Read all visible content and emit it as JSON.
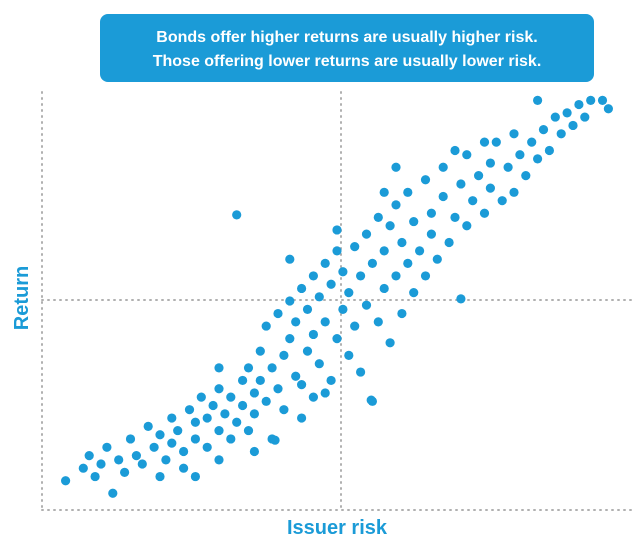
{
  "chart_data": {
    "type": "scatter",
    "annotation": [
      "Bonds offer higher returns are usually higher risk.",
      "Those offering lower returns are usually lower risk."
    ],
    "xlabel": "Issuer risk",
    "ylabel": "Return",
    "color": "#1b9bd7",
    "xlim": [
      0,
      100
    ],
    "ylim": [
      0,
      100
    ],
    "x": [
      4,
      7,
      9,
      8,
      10,
      11,
      12,
      13,
      14,
      15,
      16,
      17,
      18,
      19,
      20,
      21,
      22,
      22,
      23,
      24,
      25,
      26,
      26,
      27,
      28,
      28,
      29,
      30,
      30,
      31,
      32,
      32,
      33,
      33,
      34,
      34,
      35,
      35,
      36,
      36,
      37,
      37,
      38,
      38,
      39,
      39,
      40,
      40,
      41,
      41,
      42,
      42,
      43,
      43,
      44,
      44,
      45,
      45,
      46,
      46,
      46,
      47,
      47,
      48,
      48,
      49,
      49,
      50,
      50,
      51,
      51,
      52,
      52,
      53,
      53,
      54,
      54,
      55,
      55,
      56,
      56,
      57,
      57,
      58,
      58,
      59,
      59,
      60,
      60,
      61,
      61,
      62,
      62,
      63,
      63,
      64,
      65,
      65,
      66,
      66,
      67,
      68,
      68,
      69,
      70,
      71,
      71,
      72,
      72,
      73,
      74,
      75,
      76,
      76,
      77,
      78,
      79,
      80,
      80,
      81,
      82,
      83,
      84,
      84,
      85,
      86,
      87,
      88,
      89,
      90,
      91,
      92,
      93,
      95,
      96,
      20,
      24,
      30,
      26,
      55.8,
      39.5,
      48,
      44,
      36,
      30,
      42,
      50,
      60,
      70,
      75,
      58
    ],
    "y": [
      7,
      10,
      8,
      13,
      11,
      15,
      4,
      12,
      9,
      17,
      13,
      11,
      20,
      15,
      18,
      12,
      16,
      22,
      19,
      14,
      24,
      17,
      21,
      27,
      15,
      22,
      25,
      19,
      29,
      23,
      17,
      27,
      21,
      70.6,
      31,
      25,
      19,
      34,
      28,
      23,
      38,
      31,
      26,
      44,
      34,
      17,
      29,
      47,
      37,
      24,
      41,
      50,
      32,
      45,
      22,
      53,
      38,
      48,
      27,
      42,
      56,
      35,
      51,
      45,
      59,
      31,
      54,
      41,
      62,
      48,
      57,
      37,
      52,
      44,
      63,
      56,
      33,
      49,
      66,
      26,
      59,
      45,
      70,
      53,
      62,
      40,
      68,
      56,
      73,
      47,
      64,
      59,
      76,
      52,
      69,
      62,
      56,
      79,
      66,
      71,
      60,
      75,
      82,
      64,
      70,
      50.5,
      78,
      68,
      85,
      74,
      80,
      71,
      83,
      77,
      88,
      74,
      82,
      90,
      76,
      85,
      80,
      88,
      98,
      84,
      91,
      86,
      94,
      90,
      95,
      92,
      97,
      94,
      98,
      98,
      96,
      8,
      10,
      12,
      8,
      26.3,
      16.7,
      28,
      30,
      14,
      34,
      60,
      67,
      82,
      86,
      88,
      76
    ]
  }
}
